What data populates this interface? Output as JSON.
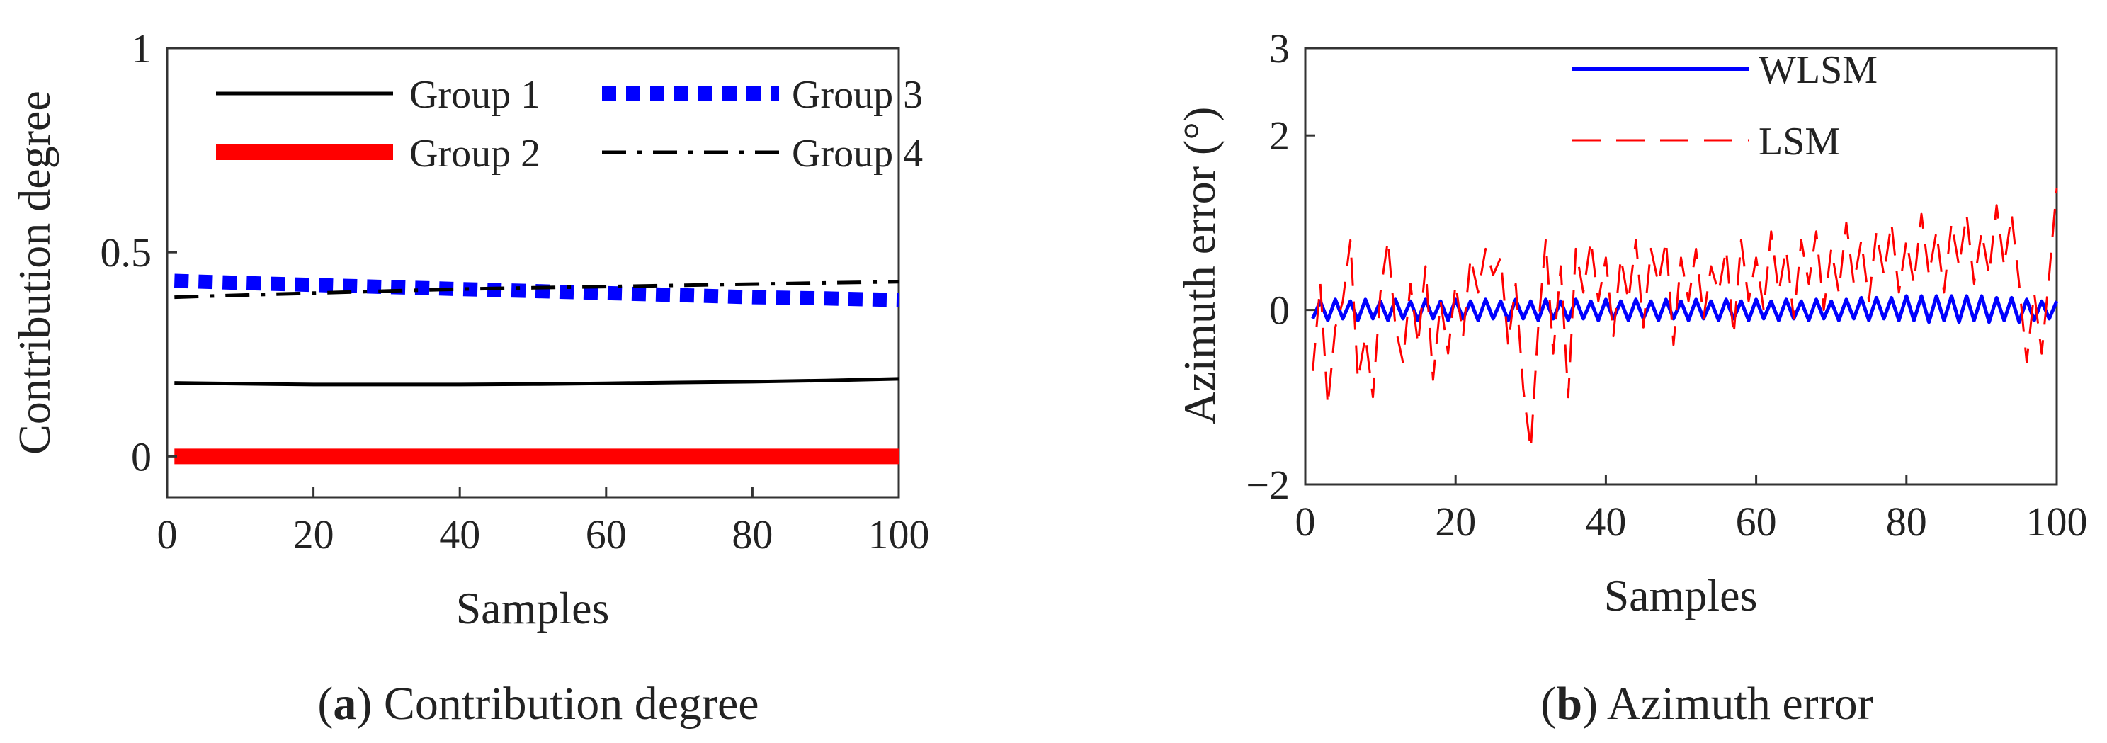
{
  "chart_data": [
    {
      "type": "line",
      "panel": "a",
      "caption_letter": "a",
      "caption_text": "Contribution degree",
      "xlabel": "Samples",
      "ylabel": "Contribution degree",
      "xlim": [
        0,
        100
      ],
      "ylim": [
        -0.1,
        1
      ],
      "xticks": [
        "0",
        "20",
        "40",
        "60",
        "80",
        "100"
      ],
      "yticks": [
        "0",
        "0.5",
        "1"
      ],
      "x": [
        1,
        10,
        20,
        30,
        40,
        50,
        60,
        70,
        80,
        90,
        100
      ],
      "series": [
        {
          "name": "Group 1",
          "color": "#000000",
          "style": "solid",
          "values": [
            0.18,
            0.178,
            0.176,
            0.176,
            0.176,
            0.177,
            0.179,
            0.181,
            0.183,
            0.186,
            0.19
          ]
        },
        {
          "name": "Group 2",
          "color": "#ff0000",
          "style": "thick",
          "values": [
            0.0,
            0.0,
            0.0,
            0.0,
            0.0,
            0.0,
            0.0,
            0.0,
            0.0,
            0.0,
            0.0
          ]
        },
        {
          "name": "Group 3",
          "color": "#0000ff",
          "style": "dotted",
          "values": [
            0.43,
            0.425,
            0.42,
            0.415,
            0.41,
            0.405,
            0.4,
            0.395,
            0.39,
            0.387,
            0.383
          ]
        },
        {
          "name": "Group 4",
          "color": "#000000",
          "style": "dashdot",
          "values": [
            0.39,
            0.395,
            0.4,
            0.405,
            0.41,
            0.413,
            0.416,
            0.419,
            0.422,
            0.425,
            0.428
          ]
        }
      ],
      "legend": "top-left"
    },
    {
      "type": "line",
      "panel": "b",
      "caption_letter": "b",
      "caption_text": "Azimuth error",
      "xlabel": "Samples",
      "ylabel": "Azimuth error (°)",
      "xlim": [
        0,
        100
      ],
      "ylim": [
        -2,
        3
      ],
      "xticks": [
        "0",
        "20",
        "40",
        "60",
        "80",
        "100"
      ],
      "yticks": [
        "−2",
        "0",
        "2",
        "3"
      ],
      "ytick_values": [
        -2,
        0,
        2,
        3
      ],
      "x": [
        1,
        2,
        3,
        4,
        5,
        6,
        7,
        8,
        9,
        10,
        11,
        12,
        13,
        14,
        15,
        16,
        17,
        18,
        19,
        20,
        21,
        22,
        23,
        24,
        25,
        26,
        27,
        28,
        29,
        30,
        31,
        32,
        33,
        34,
        35,
        36,
        37,
        38,
        39,
        40,
        41,
        42,
        43,
        44,
        45,
        46,
        47,
        48,
        49,
        50,
        51,
        52,
        53,
        54,
        55,
        56,
        57,
        58,
        59,
        60,
        61,
        62,
        63,
        64,
        65,
        66,
        67,
        68,
        69,
        70,
        71,
        72,
        73,
        74,
        75,
        76,
        77,
        78,
        79,
        80,
        81,
        82,
        83,
        84,
        85,
        86,
        87,
        88,
        89,
        90,
        91,
        92,
        93,
        94,
        95,
        96,
        97,
        98,
        99,
        100
      ],
      "series": [
        {
          "name": "WLSM",
          "color": "#0000ff",
          "style": "solid",
          "values": [
            -0.1,
            0.1,
            -0.12,
            0.12,
            -0.1,
            0.1,
            -0.12,
            0.12,
            -0.1,
            0.1,
            -0.12,
            0.12,
            -0.1,
            0.1,
            -0.12,
            0.12,
            -0.1,
            0.1,
            -0.12,
            0.12,
            -0.1,
            0.1,
            -0.12,
            0.12,
            -0.1,
            0.1,
            -0.12,
            0.12,
            -0.1,
            0.1,
            -0.12,
            0.12,
            -0.1,
            0.1,
            -0.12,
            0.12,
            -0.1,
            0.1,
            -0.12,
            0.12,
            -0.1,
            0.1,
            -0.12,
            0.12,
            -0.1,
            0.1,
            -0.12,
            0.12,
            -0.1,
            0.1,
            -0.12,
            0.12,
            -0.1,
            0.1,
            -0.12,
            0.12,
            -0.1,
            0.1,
            -0.12,
            0.12,
            -0.1,
            0.1,
            -0.12,
            0.12,
            -0.1,
            0.1,
            -0.12,
            0.12,
            -0.1,
            0.1,
            -0.12,
            0.12,
            -0.1,
            0.14,
            -0.12,
            0.14,
            -0.1,
            0.14,
            -0.12,
            0.16,
            -0.12,
            0.16,
            -0.14,
            0.16,
            -0.12,
            0.16,
            -0.14,
            0.16,
            -0.12,
            0.16,
            -0.14,
            0.14,
            -0.12,
            0.14,
            -0.14,
            0.12,
            -0.12,
            0.1,
            -0.1,
            0.1
          ]
        },
        {
          "name": "LSM",
          "color": "#ff0000",
          "style": "dashed",
          "values": [
            -0.7,
            0.3,
            -1.1,
            -0.2,
            0.1,
            0.8,
            -0.8,
            -0.3,
            -1.0,
            0.2,
            0.8,
            -0.2,
            -0.6,
            0.3,
            -0.4,
            0.5,
            -0.8,
            0.1,
            -0.5,
            0.3,
            -0.3,
            0.6,
            0.2,
            0.7,
            0.4,
            0.6,
            -0.4,
            0.3,
            -0.9,
            -1.6,
            -0.2,
            0.8,
            -0.5,
            0.5,
            -1.0,
            0.7,
            0.2,
            0.8,
            0.1,
            0.6,
            -0.3,
            0.6,
            0.1,
            0.8,
            -0.2,
            0.7,
            0.3,
            0.8,
            -0.4,
            0.6,
            0.1,
            0.7,
            -0.1,
            0.5,
            0.2,
            0.7,
            -0.3,
            0.8,
            0.1,
            0.6,
            0.0,
            0.9,
            0.2,
            0.7,
            -0.1,
            0.8,
            0.3,
            0.9,
            0.0,
            0.7,
            0.2,
            1.0,
            0.3,
            0.8,
            0.1,
            0.9,
            0.4,
            1.0,
            0.2,
            0.8,
            0.3,
            1.1,
            0.4,
            0.9,
            0.2,
            1.0,
            0.5,
            1.1,
            0.3,
            0.9,
            0.4,
            1.2,
            0.5,
            1.1,
            0.3,
            -0.6,
            0.2,
            -0.5,
            0.4,
            1.4
          ]
        }
      ],
      "legend": "top-center"
    }
  ]
}
